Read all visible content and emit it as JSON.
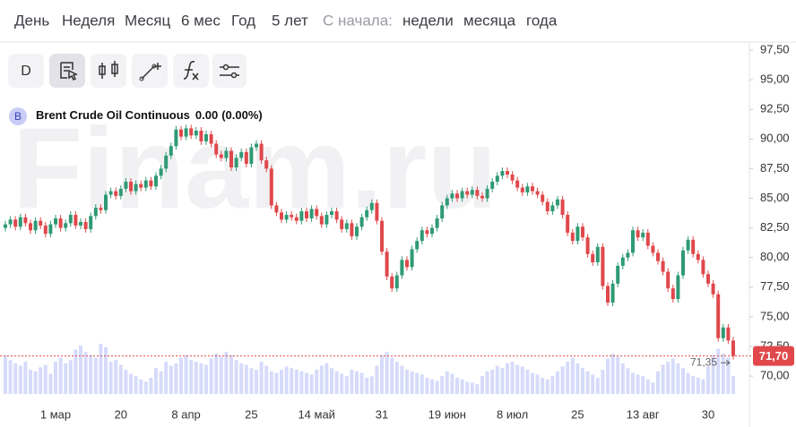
{
  "periods": [
    "День",
    "Неделя",
    "Месяц",
    "6 мес",
    "Год",
    "5 лет"
  ],
  "since_label": "С начала:",
  "since": [
    "недели",
    "месяца",
    "года"
  ],
  "toolbar_label": "D",
  "watermark": "Finam.ru",
  "chart_data": {
    "type": "candlestick",
    "symbol_badge": "B",
    "title": "Brent Crude Oil Continuous",
    "change": "0.00",
    "change_pct": "(0.00%)",
    "up_color": "#2f9a74",
    "down_color": "#e0484b",
    "volume_color": "#d6dbfb",
    "categories": [
      null,
      null,
      null,
      null,
      null,
      null,
      null,
      null,
      null,
      null,
      "1 мар",
      null,
      null,
      null,
      null,
      null,
      null,
      null,
      null,
      null,
      null,
      null,
      null,
      "20",
      null,
      null,
      null,
      null,
      null,
      null,
      null,
      null,
      null,
      null,
      null,
      null,
      "8 апр",
      null,
      null,
      null,
      null,
      null,
      null,
      null,
      null,
      null,
      null,
      null,
      null,
      "25",
      null,
      null,
      null,
      null,
      null,
      null,
      null,
      null,
      null,
      null,
      null,
      null,
      "14 май",
      null,
      null,
      null,
      null,
      null,
      null,
      null,
      null,
      null,
      null,
      null,
      null,
      "31",
      null,
      null,
      null,
      null,
      null,
      null,
      null,
      null,
      null,
      null,
      null,
      null,
      "19 июн",
      null,
      null,
      null,
      null,
      null,
      null,
      null,
      null,
      null,
      null,
      null,
      null,
      "8 июл",
      null,
      null,
      null,
      null,
      null,
      null,
      null,
      null,
      null,
      null,
      null,
      null,
      "25",
      null,
      null,
      null,
      null,
      null,
      null,
      null,
      null,
      null,
      null,
      null,
      null,
      "13 авг",
      null,
      null,
      null,
      null,
      null,
      null,
      null,
      null,
      null,
      null,
      null,
      null,
      "30",
      null,
      null,
      null,
      null,
      null
    ],
    "open": [
      82.5,
      82.8,
      83.2,
      82.6,
      83.4,
      82.9,
      82.3,
      83.1,
      82.7,
      82.0,
      82.8,
      83.3,
      82.5,
      82.9,
      83.6,
      82.7,
      83.0,
      82.4,
      83.5,
      84.2,
      84.0,
      85.3,
      85.6,
      85.2,
      85.8,
      86.4,
      85.6,
      86.2,
      85.9,
      86.5,
      86.0,
      86.9,
      87.5,
      88.6,
      89.4,
      90.8,
      90.2,
      90.9,
      90.3,
      90.7,
      89.8,
      90.4,
      89.6,
      88.7,
      88.4,
      89.0,
      87.6,
      88.4,
      88.9,
      87.9,
      89.3,
      89.6,
      88.2,
      87.5,
      84.4,
      83.8,
      83.2,
      83.6,
      83.4,
      83.1,
      83.9,
      83.3,
      84.1,
      83.5,
      82.8,
      83.6,
      83.9,
      83.2,
      82.4,
      82.9,
      81.8,
      82.6,
      83.4,
      84.0,
      84.6,
      83.1,
      80.5,
      78.4,
      77.4,
      78.5,
      79.8,
      79.2,
      80.7,
      81.4,
      82.3,
      82.0,
      82.5,
      83.3,
      84.4,
      85.0,
      85.4,
      85.0,
      85.6,
      85.3,
      85.7,
      85.2,
      85.0,
      85.8,
      86.4,
      86.9,
      87.3,
      87.0,
      86.5,
      85.9,
      85.5,
      86.0,
      85.6,
      85.3,
      84.7,
      83.9,
      84.4,
      84.9,
      83.6,
      82.1,
      81.4,
      82.6,
      81.7,
      80.3,
      79.6,
      80.9,
      77.6,
      76.2,
      77.8,
      79.3,
      80.0,
      80.4,
      82.3,
      81.7,
      82.1,
      81.0,
      80.4,
      79.7,
      78.8,
      77.4,
      76.5,
      78.5,
      80.6,
      81.5,
      80.3,
      79.8,
      78.6,
      77.8,
      76.9,
      73.2,
      74.1,
      73.0
    ],
    "high": [
      83.1,
      83.5,
      83.5,
      83.7,
      83.7,
      83.2,
      83.4,
      83.4,
      83.0,
      83.1,
      83.6,
      83.6,
      83.2,
      83.9,
      83.9,
      83.3,
      83.3,
      83.8,
      84.5,
      84.5,
      85.6,
      85.9,
      85.9,
      86.1,
      86.7,
      86.7,
      86.5,
      86.5,
      86.8,
      86.8,
      87.2,
      87.8,
      88.9,
      89.7,
      91.1,
      91.1,
      91.2,
      91.2,
      91.0,
      91.0,
      90.7,
      90.7,
      89.9,
      89.0,
      89.3,
      89.3,
      88.7,
      89.2,
      89.2,
      89.6,
      89.9,
      89.9,
      88.5,
      87.8,
      84.7,
      84.1,
      83.9,
      83.9,
      83.7,
      84.2,
      84.2,
      84.4,
      84.4,
      83.8,
      83.9,
      84.2,
      84.2,
      83.5,
      83.2,
      83.2,
      82.9,
      83.7,
      84.3,
      84.9,
      84.9,
      83.4,
      80.8,
      78.7,
      78.8,
      80.1,
      80.1,
      81.0,
      81.7,
      82.6,
      82.6,
      82.8,
      83.6,
      84.7,
      85.3,
      85.7,
      85.7,
      85.9,
      85.9,
      86.0,
      86.0,
      85.5,
      86.1,
      86.7,
      87.2,
      87.6,
      87.6,
      87.3,
      86.8,
      86.2,
      86.3,
      86.3,
      85.9,
      85.6,
      85.0,
      84.7,
      85.2,
      85.2,
      83.9,
      82.4,
      82.9,
      82.9,
      82.0,
      80.6,
      81.2,
      81.2,
      77.9,
      78.1,
      79.6,
      80.3,
      80.7,
      82.6,
      82.6,
      82.4,
      82.4,
      81.3,
      80.7,
      80.0,
      79.1,
      77.7,
      78.8,
      80.9,
      81.8,
      81.8,
      80.6,
      80.1,
      78.9,
      78.1,
      77.2,
      74.4,
      74.4,
      73.3
    ],
    "low": [
      82.2,
      82.5,
      82.3,
      82.3,
      82.6,
      82.0,
      82.0,
      82.4,
      81.7,
      81.7,
      82.5,
      82.2,
      82.2,
      82.6,
      82.4,
      82.4,
      82.1,
      82.1,
      83.2,
      83.7,
      83.7,
      85.0,
      84.9,
      84.9,
      85.5,
      85.3,
      85.3,
      85.6,
      85.6,
      85.7,
      85.7,
      86.6,
      87.2,
      88.3,
      89.1,
      89.9,
      89.9,
      90.0,
      90.0,
      89.5,
      89.5,
      89.3,
      88.4,
      88.1,
      88.1,
      87.3,
      87.3,
      88.1,
      87.6,
      87.6,
      89.0,
      87.9,
      87.2,
      84.1,
      83.5,
      82.9,
      82.9,
      83.1,
      82.8,
      82.8,
      83.0,
      83.0,
      83.2,
      82.5,
      82.5,
      83.3,
      82.9,
      82.1,
      82.1,
      81.5,
      81.5,
      82.3,
      83.1,
      83.7,
      82.8,
      80.2,
      78.1,
      77.1,
      77.1,
      78.2,
      78.9,
      78.9,
      80.4,
      81.1,
      81.7,
      81.7,
      82.2,
      83.0,
      84.1,
      84.7,
      84.7,
      84.7,
      85.0,
      85.0,
      84.9,
      84.7,
      84.7,
      85.5,
      86.1,
      86.6,
      86.7,
      86.2,
      85.6,
      85.2,
      85.2,
      85.3,
      85.0,
      84.4,
      83.6,
      83.6,
      84.1,
      83.3,
      81.8,
      81.1,
      81.1,
      81.4,
      80.0,
      79.3,
      79.3,
      77.3,
      75.9,
      75.9,
      77.5,
      79.0,
      79.7,
      80.1,
      81.4,
      81.4,
      80.7,
      80.1,
      79.4,
      78.5,
      77.1,
      76.2,
      76.2,
      78.2,
      80.3,
      80.0,
      79.5,
      78.3,
      77.5,
      76.6,
      72.9,
      72.9,
      72.7,
      71.4
    ],
    "close": [
      82.8,
      83.2,
      82.6,
      83.4,
      82.9,
      82.3,
      83.1,
      82.7,
      82.0,
      82.8,
      83.3,
      82.5,
      82.9,
      83.6,
      82.7,
      83.0,
      82.4,
      83.5,
      84.2,
      84.0,
      85.3,
      85.6,
      85.2,
      85.8,
      86.4,
      85.6,
      86.2,
      85.9,
      86.5,
      86.0,
      86.9,
      87.5,
      88.6,
      89.4,
      90.8,
      90.2,
      90.9,
      90.3,
      90.7,
      89.8,
      90.4,
      89.6,
      88.7,
      88.4,
      89.0,
      87.6,
      88.4,
      88.9,
      87.9,
      89.3,
      89.6,
      88.2,
      87.5,
      84.4,
      83.8,
      83.2,
      83.6,
      83.4,
      83.1,
      83.9,
      83.3,
      84.1,
      83.5,
      82.8,
      83.6,
      83.9,
      83.2,
      82.4,
      82.9,
      81.8,
      82.6,
      83.4,
      84.0,
      84.6,
      83.1,
      80.5,
      78.4,
      77.4,
      78.5,
      79.8,
      79.2,
      80.7,
      81.4,
      82.3,
      82.0,
      82.5,
      83.3,
      84.4,
      85.0,
      85.4,
      85.0,
      85.6,
      85.3,
      85.7,
      85.2,
      85.0,
      85.8,
      86.4,
      86.9,
      87.3,
      87.0,
      86.5,
      85.9,
      85.5,
      86.0,
      85.6,
      85.3,
      84.7,
      83.9,
      84.4,
      84.9,
      83.6,
      82.1,
      81.4,
      82.6,
      81.7,
      80.3,
      79.6,
      80.9,
      77.6,
      76.2,
      77.8,
      79.3,
      80.0,
      80.4,
      82.3,
      81.7,
      82.1,
      81.0,
      80.4,
      79.7,
      78.8,
      77.4,
      76.5,
      78.5,
      80.6,
      81.5,
      80.3,
      79.8,
      78.6,
      77.8,
      76.9,
      73.2,
      74.1,
      73.0,
      71.7
    ],
    "volume": [
      48,
      42,
      38,
      35,
      40,
      30,
      28,
      33,
      36,
      25,
      40,
      45,
      38,
      42,
      55,
      60,
      52,
      48,
      45,
      62,
      58,
      40,
      42,
      36,
      30,
      25,
      22,
      18,
      15,
      20,
      32,
      28,
      40,
      35,
      38,
      45,
      48,
      42,
      40,
      38,
      36,
      44,
      50,
      46,
      52,
      48,
      42,
      38,
      36,
      32,
      30,
      40,
      35,
      28,
      26,
      30,
      34,
      32,
      30,
      28,
      26,
      24,
      30,
      35,
      38,
      32,
      28,
      25,
      22,
      30,
      28,
      26,
      20,
      22,
      35,
      48,
      52,
      45,
      40,
      35,
      30,
      28,
      26,
      24,
      20,
      18,
      16,
      22,
      28,
      25,
      20,
      18,
      15,
      14,
      12,
      22,
      28,
      30,
      35,
      32,
      38,
      40,
      36,
      34,
      30,
      26,
      24,
      20,
      18,
      22,
      28,
      34,
      40,
      45,
      38,
      32,
      28,
      24,
      20,
      30,
      44,
      50,
      46,
      38,
      32,
      26,
      24,
      22,
      18,
      14,
      28,
      36,
      40,
      44,
      38,
      32,
      26,
      22,
      20,
      18,
      34,
      48,
      56,
      50,
      45,
      22
    ],
    "vlim": [
      0,
      100
    ],
    "ylim": [
      68.5,
      98.1
    ],
    "yticks": [
      {
        "value": 70,
        "label": "70,00"
      },
      {
        "value": 72.5,
        "label": "72,50"
      },
      {
        "value": 75,
        "label": "75,00"
      },
      {
        "value": 77.5,
        "label": "77,50"
      },
      {
        "value": 80,
        "label": "80,00"
      },
      {
        "value": 82.5,
        "label": "82,50"
      },
      {
        "value": 85,
        "label": "85,00"
      },
      {
        "value": 87.5,
        "label": "87,50"
      },
      {
        "value": 90,
        "label": "90,00"
      },
      {
        "value": 92.5,
        "label": "92,50"
      },
      {
        "value": 95,
        "label": "95,00"
      },
      {
        "value": 97.5,
        "label": "97,50"
      }
    ],
    "last_price": {
      "value": 71.7,
      "label": "71,70"
    },
    "annotation": {
      "value": 71.35,
      "label": "71,35"
    },
    "grid": false
  }
}
